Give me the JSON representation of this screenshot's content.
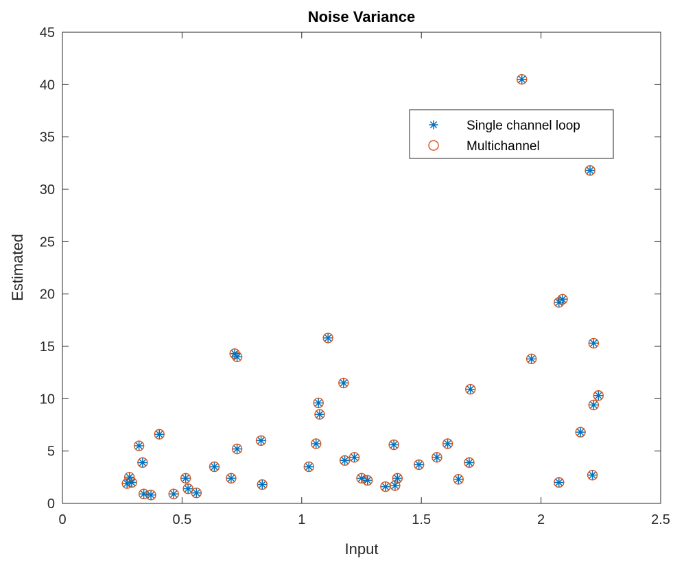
{
  "chart_data": {
    "type": "scatter",
    "title": "Noise Variance",
    "xlabel": "Input",
    "ylabel": "Estimated",
    "xlim": [
      0,
      2.5
    ],
    "ylim": [
      0,
      45
    ],
    "xticks": [
      0,
      0.5,
      1,
      1.5,
      2,
      2.5
    ],
    "xtick_labels": [
      "0",
      "0.5",
      "1",
      "1.5",
      "2",
      "2.5"
    ],
    "yticks": [
      0,
      5,
      10,
      15,
      20,
      25,
      30,
      35,
      40,
      45
    ],
    "ytick_labels": [
      "0",
      "5",
      "10",
      "15",
      "20",
      "25",
      "30",
      "35",
      "40",
      "45"
    ],
    "grid": false,
    "legend": "upper-right",
    "series": [
      {
        "name": "Single channel loop",
        "marker": "asterisk",
        "color": "#0072BD",
        "points": [
          [
            0.27,
            1.9
          ],
          [
            0.28,
            2.5
          ],
          [
            0.29,
            2.0
          ],
          [
            0.32,
            5.5
          ],
          [
            0.335,
            3.9
          ],
          [
            0.34,
            0.9
          ],
          [
            0.37,
            0.8
          ],
          [
            0.405,
            6.6
          ],
          [
            0.465,
            0.9
          ],
          [
            0.515,
            2.4
          ],
          [
            0.525,
            1.4
          ],
          [
            0.56,
            1.0
          ],
          [
            0.635,
            3.5
          ],
          [
            0.705,
            2.4
          ],
          [
            0.72,
            14.3
          ],
          [
            0.73,
            14.0
          ],
          [
            0.73,
            5.2
          ],
          [
            0.83,
            6.0
          ],
          [
            0.835,
            1.8
          ],
          [
            1.03,
            3.5
          ],
          [
            1.06,
            5.7
          ],
          [
            1.07,
            9.6
          ],
          [
            1.075,
            8.5
          ],
          [
            1.11,
            15.8
          ],
          [
            1.175,
            11.5
          ],
          [
            1.18,
            4.1
          ],
          [
            1.22,
            4.4
          ],
          [
            1.25,
            2.4
          ],
          [
            1.275,
            2.2
          ],
          [
            1.35,
            1.6
          ],
          [
            1.385,
            5.6
          ],
          [
            1.39,
            1.7
          ],
          [
            1.4,
            2.4
          ],
          [
            1.49,
            3.7
          ],
          [
            1.565,
            4.4
          ],
          [
            1.61,
            5.7
          ],
          [
            1.655,
            2.3
          ],
          [
            1.7,
            3.9
          ],
          [
            1.705,
            10.9
          ],
          [
            1.92,
            40.5
          ],
          [
            1.96,
            13.8
          ],
          [
            2.075,
            19.2
          ],
          [
            2.09,
            19.5
          ],
          [
            2.075,
            2.0
          ],
          [
            2.165,
            6.8
          ],
          [
            2.205,
            31.8
          ],
          [
            2.215,
            2.7
          ],
          [
            2.22,
            15.3
          ],
          [
            2.22,
            9.4
          ],
          [
            2.24,
            10.3
          ]
        ]
      },
      {
        "name": "Multichannel",
        "marker": "circle",
        "color": "#D95319",
        "points": [
          [
            0.27,
            1.9
          ],
          [
            0.28,
            2.5
          ],
          [
            0.29,
            2.0
          ],
          [
            0.32,
            5.5
          ],
          [
            0.335,
            3.9
          ],
          [
            0.34,
            0.9
          ],
          [
            0.37,
            0.8
          ],
          [
            0.405,
            6.6
          ],
          [
            0.465,
            0.9
          ],
          [
            0.515,
            2.4
          ],
          [
            0.525,
            1.4
          ],
          [
            0.56,
            1.0
          ],
          [
            0.635,
            3.5
          ],
          [
            0.705,
            2.4
          ],
          [
            0.72,
            14.3
          ],
          [
            0.73,
            14.0
          ],
          [
            0.73,
            5.2
          ],
          [
            0.83,
            6.0
          ],
          [
            0.835,
            1.8
          ],
          [
            1.03,
            3.5
          ],
          [
            1.06,
            5.7
          ],
          [
            1.07,
            9.6
          ],
          [
            1.075,
            8.5
          ],
          [
            1.11,
            15.8
          ],
          [
            1.175,
            11.5
          ],
          [
            1.18,
            4.1
          ],
          [
            1.22,
            4.4
          ],
          [
            1.25,
            2.4
          ],
          [
            1.275,
            2.2
          ],
          [
            1.35,
            1.6
          ],
          [
            1.385,
            5.6
          ],
          [
            1.39,
            1.7
          ],
          [
            1.4,
            2.4
          ],
          [
            1.49,
            3.7
          ],
          [
            1.565,
            4.4
          ],
          [
            1.61,
            5.7
          ],
          [
            1.655,
            2.3
          ],
          [
            1.7,
            3.9
          ],
          [
            1.705,
            10.9
          ],
          [
            1.92,
            40.5
          ],
          [
            1.96,
            13.8
          ],
          [
            2.075,
            19.2
          ],
          [
            2.09,
            19.5
          ],
          [
            2.075,
            2.0
          ],
          [
            2.165,
            6.8
          ],
          [
            2.205,
            31.8
          ],
          [
            2.215,
            2.7
          ],
          [
            2.22,
            15.3
          ],
          [
            2.22,
            9.4
          ],
          [
            2.24,
            10.3
          ]
        ]
      }
    ]
  }
}
